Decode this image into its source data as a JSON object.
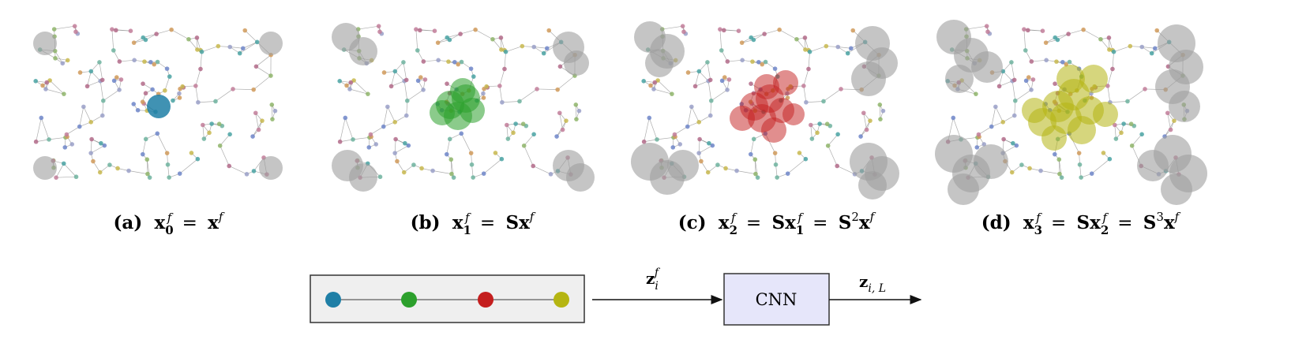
{
  "panels": [
    {
      "id": "a",
      "caption_tag": "(a)",
      "caption_math": [
        "x",
        "0",
        "f",
        "=",
        "x",
        "f"
      ]
    },
    {
      "id": "b",
      "caption_tag": "(b)",
      "caption_math": [
        "x",
        "1",
        "f",
        "=",
        "Sx",
        "f"
      ]
    },
    {
      "id": "c",
      "caption_tag": "(c)",
      "caption_math": [
        "x",
        "2",
        "f",
        "=",
        "Sx",
        "1",
        "f",
        "=",
        "S",
        "2",
        "x",
        "f"
      ]
    },
    {
      "id": "d",
      "caption_tag": "(d)",
      "caption_math": [
        "x",
        "3",
        "f",
        "=",
        "Sx",
        "2",
        "f",
        "=",
        "S",
        "3",
        "x",
        "f"
      ]
    }
  ],
  "colors": {
    "hop0": "#1f7fa6",
    "hop1": "#2ca02c",
    "hop2": "#c41e1e",
    "hop3": "#b5b512",
    "gray": "#9e9e9e",
    "edge": "#8a8a8a",
    "box_fill": "#efefef",
    "cnn_fill": "#e6e6fa"
  },
  "pipeline": {
    "input_label_main": "z",
    "input_label_sub": "i",
    "input_label_sup": "f",
    "cnn_label": "CNN",
    "output_label_main": "z",
    "output_label_sub": "i, L"
  }
}
